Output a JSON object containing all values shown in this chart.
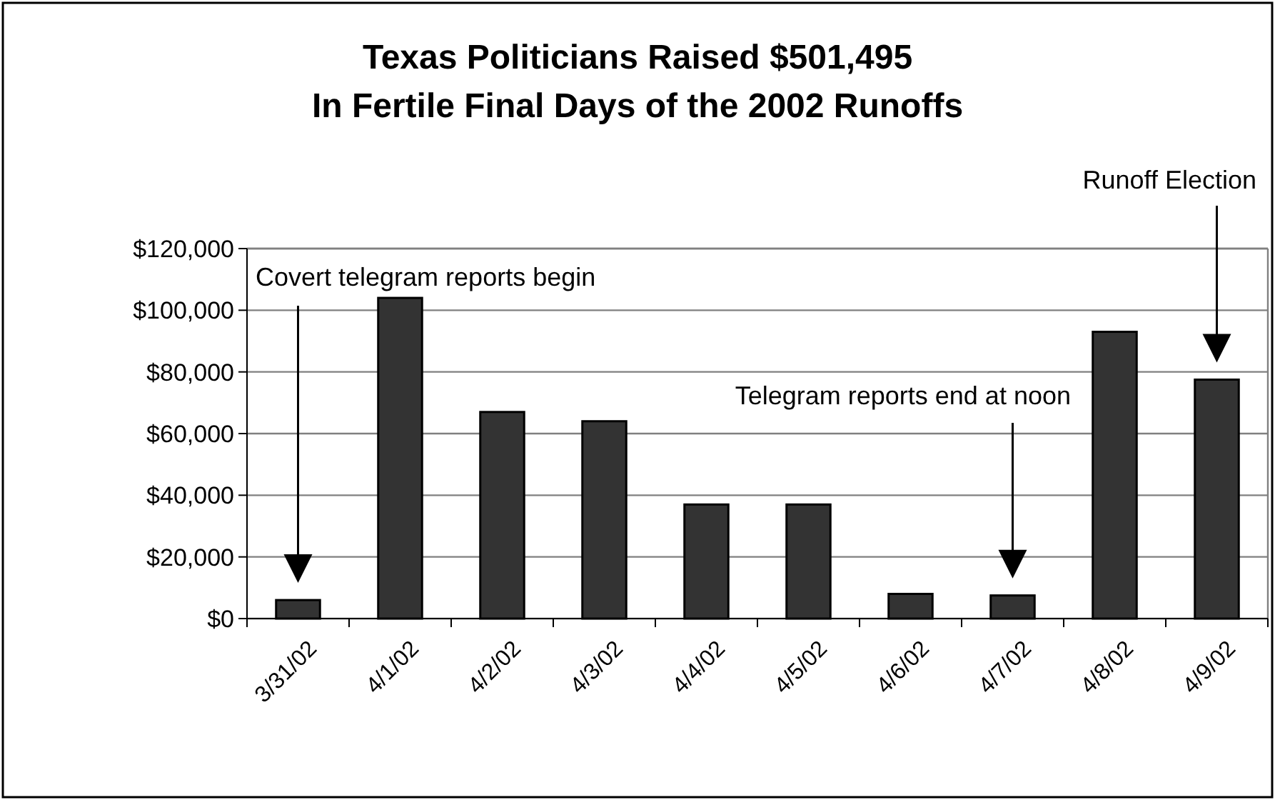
{
  "chart_data": {
    "type": "bar",
    "title": "Texas Politicians Raised $501,495\nIn Fertile Final Days of the 2002 Runoffs",
    "categories": [
      "3/31/02",
      "4/1/02",
      "4/2/02",
      "4/3/02",
      "4/4/02",
      "4/5/02",
      "4/6/02",
      "4/7/02",
      "4/8/02",
      "4/9/02"
    ],
    "values": [
      6000,
      104000,
      67000,
      64000,
      37000,
      37000,
      8000,
      7500,
      93000,
      77500
    ],
    "color": "#333333",
    "ylim": [
      0,
      120000
    ],
    "yticks": [
      {
        "value": 0,
        "label": "$0"
      },
      {
        "value": 20000,
        "label": "$20,000"
      },
      {
        "value": 40000,
        "label": "$40,000"
      },
      {
        "value": 60000,
        "label": "$60,000"
      },
      {
        "value": 80000,
        "label": "$80,000"
      },
      {
        "value": 100000,
        "label": "$100,000"
      },
      {
        "value": 120000,
        "label": "$120,000"
      }
    ],
    "grid": "y",
    "annotations": [
      "Covert telegram reports begin",
      "Telegram reports end at noon",
      "Runoff Election"
    ]
  }
}
